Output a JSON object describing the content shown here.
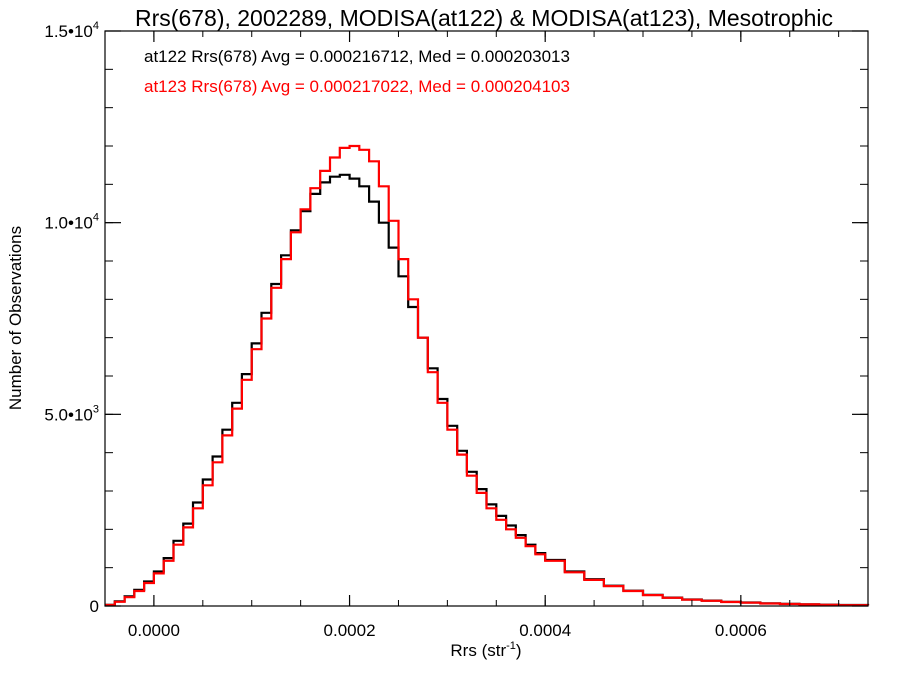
{
  "chart_data": {
    "type": "line",
    "title": "Rrs(678), 2002289, MODISA(at122) & MODISA(at123), Mesotrophic",
    "xlabel": "Rrs (str",
    "xlabel_sup": "-1",
    "xlabel_close": ")",
    "ylabel": "Number of Observations",
    "xlim": [
      -5e-05,
      0.00073
    ],
    "ylim": [
      0,
      15000
    ],
    "x_ticks": [
      {
        "value": 0.0,
        "label": "0.0000"
      },
      {
        "value": 0.0002,
        "label": "0.0002"
      },
      {
        "value": 0.0004,
        "label": "0.0004"
      },
      {
        "value": 0.0006,
        "label": "0.0006"
      }
    ],
    "y_ticks": [
      {
        "value": 0,
        "mant": "0",
        "exp": ""
      },
      {
        "value": 5000,
        "mant": "5.0•10",
        "exp": "3"
      },
      {
        "value": 10000,
        "mant": "1.0•10",
        "exp": "4"
      },
      {
        "value": 15000,
        "mant": "1.5•10",
        "exp": "4"
      }
    ],
    "grid": false,
    "annotations": [
      {
        "text": "at122 Rrs(678) Avg = 0.000216712, Med = 0.000203013",
        "color": "#000000"
      },
      {
        "text": "at123 Rrs(678) Avg = 0.000217022, Med = 0.000204103",
        "color": "#ff0000"
      }
    ],
    "series": [
      {
        "color": "#000000",
        "x": [
          -5e-05,
          -4e-05,
          -3e-05,
          -2e-05,
          -1e-05,
          0.0,
          1e-05,
          2e-05,
          3e-05,
          4e-05,
          5e-05,
          6e-05,
          7e-05,
          8e-05,
          9e-05,
          0.0001,
          0.00011,
          0.00012,
          0.00013,
          0.00014,
          0.00015,
          0.00016,
          0.00017,
          0.00018,
          0.00019,
          0.0002,
          0.00021,
          0.00022,
          0.00023,
          0.00024,
          0.00025,
          0.00026,
          0.00027,
          0.00028,
          0.00029,
          0.0003,
          0.00031,
          0.00032,
          0.00033,
          0.00034,
          0.00035,
          0.00036,
          0.00037,
          0.00038,
          0.00039,
          0.0004,
          0.00042,
          0.00044,
          0.00046,
          0.00048,
          0.0005,
          0.00052,
          0.00054,
          0.00056,
          0.00058,
          0.0006,
          0.00062,
          0.00064,
          0.00066,
          0.00068,
          0.0007,
          0.00073
        ],
        "values": [
          30,
          120,
          250,
          420,
          640,
          900,
          1250,
          1700,
          2150,
          2700,
          3300,
          3900,
          4600,
          5300,
          6050,
          6850,
          7650,
          8400,
          9150,
          9800,
          10300,
          10750,
          11050,
          11200,
          11250,
          11150,
          10950,
          10550,
          10000,
          9350,
          8600,
          7800,
          7000,
          6200,
          5400,
          4700,
          4050,
          3500,
          3050,
          2650,
          2350,
          2100,
          1850,
          1600,
          1380,
          1200,
          900,
          700,
          530,
          400,
          290,
          220,
          170,
          140,
          110,
          90,
          70,
          55,
          45,
          35,
          25,
          15
        ]
      },
      {
        "color": "#ff0000",
        "x": [
          -5e-05,
          -4e-05,
          -3e-05,
          -2e-05,
          -1e-05,
          0.0,
          1e-05,
          2e-05,
          3e-05,
          4e-05,
          5e-05,
          6e-05,
          7e-05,
          8e-05,
          9e-05,
          0.0001,
          0.00011,
          0.00012,
          0.00013,
          0.00014,
          0.00015,
          0.00016,
          0.00017,
          0.00018,
          0.00019,
          0.0002,
          0.00021,
          0.00022,
          0.00023,
          0.00024,
          0.00025,
          0.00026,
          0.00027,
          0.00028,
          0.00029,
          0.0003,
          0.00031,
          0.00032,
          0.00033,
          0.00034,
          0.00035,
          0.00036,
          0.00037,
          0.00038,
          0.00039,
          0.0004,
          0.00042,
          0.00044,
          0.00046,
          0.00048,
          0.0005,
          0.00052,
          0.00054,
          0.00056,
          0.00058,
          0.0006,
          0.00062,
          0.00064,
          0.00066,
          0.00068,
          0.0007,
          0.00073
        ],
        "values": [
          25,
          110,
          230,
          390,
          600,
          850,
          1180,
          1600,
          2050,
          2550,
          3150,
          3750,
          4450,
          5150,
          5900,
          6700,
          7500,
          8300,
          9050,
          9750,
          10350,
          10900,
          11350,
          11700,
          11950,
          12000,
          11900,
          11600,
          10950,
          10050,
          9050,
          8000,
          7000,
          6100,
          5300,
          4600,
          3950,
          3400,
          2950,
          2550,
          2250,
          2000,
          1780,
          1560,
          1350,
          1180,
          880,
          680,
          520,
          390,
          285,
          215,
          165,
          135,
          105,
          85,
          65,
          52,
          42,
          32,
          22,
          12
        ]
      }
    ]
  }
}
